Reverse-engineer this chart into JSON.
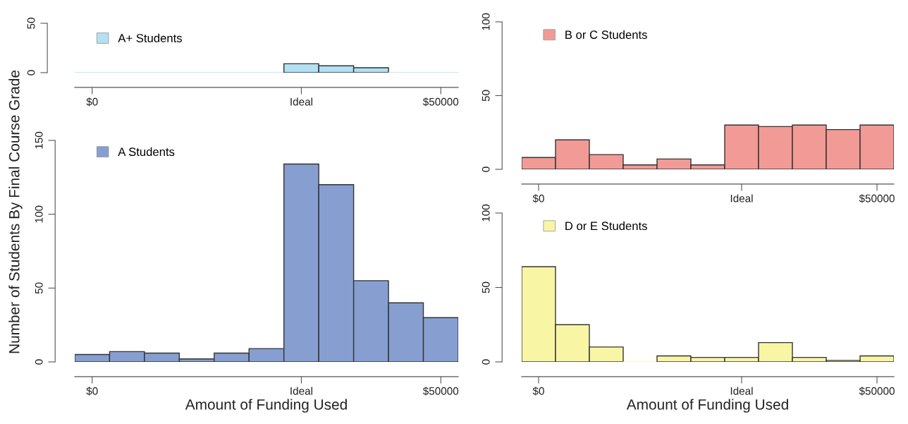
{
  "chart_data": [
    {
      "type": "histogram",
      "bins": [
        -2500,
        2500,
        7500,
        12500,
        17500,
        22500,
        27500,
        32500,
        37500,
        42500,
        47500,
        52500
      ],
      "series": [
        {
          "name": "A+ Students",
          "color": "#b3e0f2",
          "values": [
            0,
            0,
            0,
            0,
            0,
            0,
            9,
            7,
            5,
            0,
            0
          ]
        }
      ],
      "xlim": [
        -2500,
        52500
      ],
      "xticks": [
        {
          "value": 0,
          "label": "$0"
        },
        {
          "value": 30000,
          "label": "Ideal"
        },
        {
          "value": 50000,
          "label": "$50000"
        }
      ],
      "ylim": [
        0,
        50
      ],
      "yticks": [
        0,
        50
      ],
      "legend": "top left",
      "grid": false
    },
    {
      "type": "histogram",
      "bins": [
        -2500,
        2500,
        7500,
        12500,
        17500,
        22500,
        27500,
        32500,
        37500,
        42500,
        47500,
        52500
      ],
      "series": [
        {
          "name": "B or C Students",
          "color": "#f29a96",
          "values": [
            8,
            20,
            10,
            3,
            7,
            3,
            30,
            29,
            30,
            27,
            30
          ]
        }
      ],
      "xlim": [
        -2500,
        52500
      ],
      "xticks": [
        {
          "value": 0,
          "label": "$0"
        },
        {
          "value": 30000,
          "label": "Ideal"
        },
        {
          "value": 50000,
          "label": "$50000"
        }
      ],
      "ylim": [
        0,
        100
      ],
      "yticks": [
        0,
        50,
        100
      ],
      "legend": "top left",
      "grid": false
    },
    {
      "type": "histogram",
      "bins": [
        -2500,
        2500,
        7500,
        12500,
        17500,
        22500,
        27500,
        32500,
        37500,
        42500,
        47500,
        52500
      ],
      "series": [
        {
          "name": "A Students",
          "color": "#869fd0",
          "values": [
            5,
            7,
            6,
            2,
            6,
            9,
            134,
            120,
            55,
            40,
            30
          ]
        }
      ],
      "xlim": [
        -2500,
        52500
      ],
      "xticks": [
        {
          "value": 0,
          "label": "$0"
        },
        {
          "value": 30000,
          "label": "Ideal"
        },
        {
          "value": 50000,
          "label": "$50000"
        }
      ],
      "ylim": [
        0,
        150
      ],
      "yticks": [
        0,
        50,
        100,
        150
      ],
      "legend": "top left",
      "grid": false,
      "xlabel": "Amount of Funding Used",
      "ylabel": "Number of Students By Final Course Grade"
    },
    {
      "type": "histogram",
      "bins": [
        -2500,
        2500,
        7500,
        12500,
        17500,
        22500,
        27500,
        32500,
        37500,
        42500,
        47500,
        52500
      ],
      "series": [
        {
          "name": "D or E Students",
          "color": "#f8f5a5",
          "values": [
            64,
            25,
            10,
            0,
            4,
            3,
            3,
            13,
            3,
            1,
            4
          ]
        }
      ],
      "xlim": [
        -2500,
        52500
      ],
      "xticks": [
        {
          "value": 0,
          "label": "$0"
        },
        {
          "value": 30000,
          "label": "Ideal"
        },
        {
          "value": 50000,
          "label": "$50000"
        }
      ],
      "ylim": [
        0,
        100
      ],
      "yticks": [
        0,
        50,
        100
      ],
      "legend": "top left",
      "grid": false,
      "xlabel": "Amount of Funding Used"
    }
  ]
}
